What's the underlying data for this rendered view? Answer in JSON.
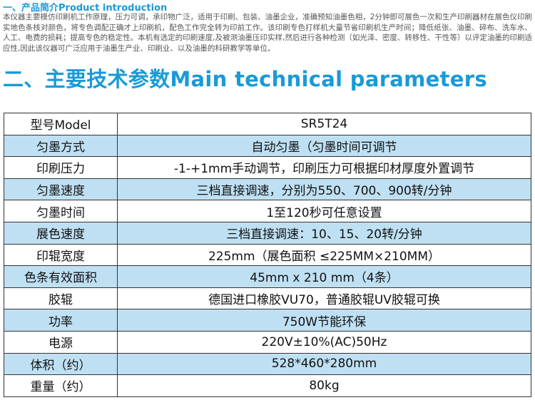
{
  "section1": {
    "title": "一、产品简介Product introduction",
    "text": "本仪器主要模仿印刷机工作原理，压力可调，承印物广泛，适用于印刷、包装、油墨企业，准确预知油墨色相，2分钟即可展色一次和生产印刷器材在展色仪印刷实地色条核对颜色，将专色调配正确才上印刷机，配色工作完全转为印前工作。该印刷专色打样机大量节省印刷机生产时间；降低纸张、油墨、碎布、洗车水、人工、电费的损耗；提高专色的稳定性。本机有选定的印刷速度,及被测油墨压印实样,然后进行各种检测（如光泽、密度、转移性、干性等）以评定油墨的印刷适应性,因此该仪器可广泛应用于油墨生产业、印刷业、以及油墨的科研教学等单位。"
  },
  "section2": {
    "title": "二、主要技术参数Main technical parameters"
  },
  "table": {
    "rows": [
      [
        "型号Model",
        "SR5T24"
      ],
      [
        "匀墨方式",
        "自动匀墨（匀墨时间可调节"
      ],
      [
        "印刷压力",
        "-1-+1mm手动调节，印刷压力可根据印材厚度外置调节"
      ],
      [
        "匀墨速度",
        "三档直接调速，分别为550、700、900转/分钟"
      ],
      [
        "匀墨时间",
        "1至120秒可任意设置"
      ],
      [
        "展色速度",
        "三档直接调速：10、15、20转/分钟"
      ],
      [
        "印辊宽度",
        "225mm（展色面积 ≤225MM×210MM）"
      ],
      [
        "色条有效面积",
        "45mm x 210 mm（4条）"
      ],
      [
        "胶辊",
        "德国进口橡胶VU70，普通胶辊UV胶辊可换"
      ],
      [
        "功率",
        "750W节能环保"
      ],
      [
        "电源",
        "220V±10%(AC)50Hz"
      ],
      [
        "体积（约）",
        "528*460*280mm"
      ],
      [
        "重量（约）",
        "80kg"
      ]
    ]
  }
}
